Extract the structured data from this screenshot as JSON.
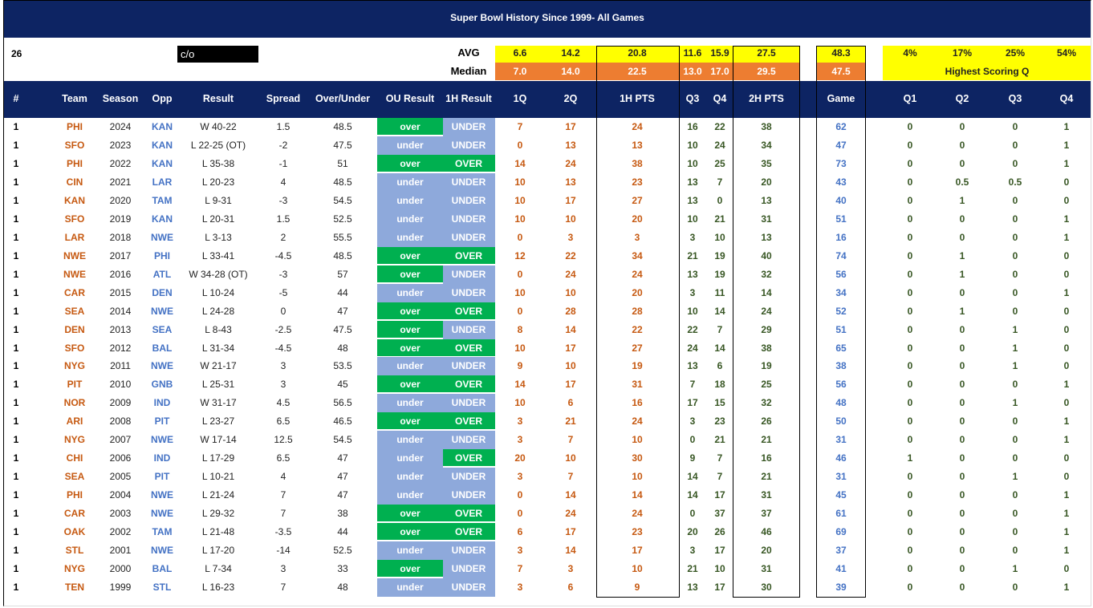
{
  "title": "Super Bowl History Since 1999- All Games",
  "count": "26",
  "filter": "c/o",
  "avg": {
    "label": "AVG",
    "values": [
      "6.6",
      "14.2",
      "20.8",
      "11.6",
      "15.9",
      "27.5",
      "48.3"
    ]
  },
  "median": {
    "label": "Median",
    "values": [
      "7.0",
      "14.0",
      "22.5",
      "13.0",
      "17.0",
      "29.5",
      "47.5"
    ]
  },
  "quarter_pct": [
    "4%",
    "17%",
    "25%",
    "54%"
  ],
  "highest_label": "Highest Scoring Q",
  "table": {
    "headers": [
      "#",
      "Team",
      "Season",
      "Opp",
      "Result",
      "Spread",
      "Over/Under",
      "OU Result",
      "1H Result",
      "1Q",
      "2Q",
      "1H PTS",
      "Q3",
      "Q4",
      "2H PTS",
      "Game",
      "Q1",
      "Q2",
      "Q3",
      "Q4"
    ],
    "rows": [
      [
        "1",
        "PHI",
        "2024",
        "KAN",
        "W 40-22",
        "1.5",
        "48.5",
        "over",
        "UNDER",
        "7",
        "17",
        "24",
        "16",
        "22",
        "38",
        "62",
        "0",
        "0",
        "0",
        "1"
      ],
      [
        "1",
        "SFO",
        "2023",
        "KAN",
        "L 22-25 (OT)",
        "-2",
        "47.5",
        "under",
        "UNDER",
        "0",
        "13",
        "13",
        "10",
        "24",
        "34",
        "47",
        "0",
        "0",
        "0",
        "1"
      ],
      [
        "1",
        "PHI",
        "2022",
        "KAN",
        "L 35-38",
        "-1",
        "51",
        "over",
        "OVER",
        "14",
        "24",
        "38",
        "10",
        "25",
        "35",
        "73",
        "0",
        "0",
        "0",
        "1"
      ],
      [
        "1",
        "CIN",
        "2021",
        "LAR",
        "L 20-23",
        "4",
        "48.5",
        "under",
        "UNDER",
        "10",
        "13",
        "23",
        "13",
        "7",
        "20",
        "43",
        "0",
        "0.5",
        "0.5",
        "0"
      ],
      [
        "1",
        "KAN",
        "2020",
        "TAM",
        "L 9-31",
        "-3",
        "54.5",
        "under",
        "UNDER",
        "10",
        "17",
        "27",
        "13",
        "0",
        "13",
        "40",
        "0",
        "1",
        "0",
        "0"
      ],
      [
        "1",
        "SFO",
        "2019",
        "KAN",
        "L 20-31",
        "1.5",
        "52.5",
        "under",
        "UNDER",
        "10",
        "10",
        "20",
        "10",
        "21",
        "31",
        "51",
        "0",
        "0",
        "0",
        "1"
      ],
      [
        "1",
        "LAR",
        "2018",
        "NWE",
        "L 3-13",
        "2",
        "55.5",
        "under",
        "UNDER",
        "0",
        "3",
        "3",
        "3",
        "10",
        "13",
        "16",
        "0",
        "0",
        "0",
        "1"
      ],
      [
        "1",
        "NWE",
        "2017",
        "PHI",
        "L 33-41",
        "-4.5",
        "48.5",
        "over",
        "OVER",
        "12",
        "22",
        "34",
        "21",
        "19",
        "40",
        "74",
        "0",
        "1",
        "0",
        "0"
      ],
      [
        "1",
        "NWE",
        "2016",
        "ATL",
        "W 34-28 (OT)",
        "-3",
        "57",
        "over",
        "UNDER",
        "0",
        "24",
        "24",
        "13",
        "19",
        "32",
        "56",
        "0",
        "1",
        "0",
        "0"
      ],
      [
        "1",
        "CAR",
        "2015",
        "DEN",
        "L 10-24",
        "-5",
        "44",
        "under",
        "UNDER",
        "10",
        "10",
        "20",
        "3",
        "11",
        "14",
        "34",
        "0",
        "0",
        "0",
        "1"
      ],
      [
        "1",
        "SEA",
        "2014",
        "NWE",
        "L 24-28",
        "0",
        "47",
        "over",
        "OVER",
        "0",
        "28",
        "28",
        "10",
        "14",
        "24",
        "52",
        "0",
        "1",
        "0",
        "0"
      ],
      [
        "1",
        "DEN",
        "2013",
        "SEA",
        "L 8-43",
        "-2.5",
        "47.5",
        "over",
        "UNDER",
        "8",
        "14",
        "22",
        "22",
        "7",
        "29",
        "51",
        "0",
        "0",
        "1",
        "0"
      ],
      [
        "1",
        "SFO",
        "2012",
        "BAL",
        "L 31-34",
        "-4.5",
        "48",
        "over",
        "OVER",
        "10",
        "17",
        "27",
        "24",
        "14",
        "38",
        "65",
        "0",
        "0",
        "1",
        "0"
      ],
      [
        "1",
        "NYG",
        "2011",
        "NWE",
        "W 21-17",
        "3",
        "53.5",
        "under",
        "UNDER",
        "9",
        "10",
        "19",
        "13",
        "6",
        "19",
        "38",
        "0",
        "0",
        "1",
        "0"
      ],
      [
        "1",
        "PIT",
        "2010",
        "GNB",
        "L 25-31",
        "3",
        "45",
        "over",
        "OVER",
        "14",
        "17",
        "31",
        "7",
        "18",
        "25",
        "56",
        "0",
        "0",
        "0",
        "1"
      ],
      [
        "1",
        "NOR",
        "2009",
        "IND",
        "W 31-17",
        "4.5",
        "56.5",
        "under",
        "UNDER",
        "10",
        "6",
        "16",
        "17",
        "15",
        "32",
        "48",
        "0",
        "0",
        "1",
        "0"
      ],
      [
        "1",
        "ARI",
        "2008",
        "PIT",
        "L 23-27",
        "6.5",
        "46.5",
        "over",
        "OVER",
        "3",
        "21",
        "24",
        "3",
        "23",
        "26",
        "50",
        "0",
        "0",
        "0",
        "1"
      ],
      [
        "1",
        "NYG",
        "2007",
        "NWE",
        "W 17-14",
        "12.5",
        "54.5",
        "under",
        "UNDER",
        "3",
        "7",
        "10",
        "0",
        "21",
        "21",
        "31",
        "0",
        "0",
        "0",
        "1"
      ],
      [
        "1",
        "CHI",
        "2006",
        "IND",
        "L 17-29",
        "6.5",
        "47",
        "under",
        "OVER",
        "20",
        "10",
        "30",
        "9",
        "7",
        "16",
        "46",
        "1",
        "0",
        "0",
        "0"
      ],
      [
        "1",
        "SEA",
        "2005",
        "PIT",
        "L 10-21",
        "4",
        "47",
        "under",
        "UNDER",
        "3",
        "7",
        "10",
        "14",
        "7",
        "21",
        "31",
        "0",
        "0",
        "1",
        "0"
      ],
      [
        "1",
        "PHI",
        "2004",
        "NWE",
        "L 21-24",
        "7",
        "47",
        "under",
        "UNDER",
        "0",
        "14",
        "14",
        "14",
        "17",
        "31",
        "45",
        "0",
        "0",
        "0",
        "1"
      ],
      [
        "1",
        "CAR",
        "2003",
        "NWE",
        "L 29-32",
        "7",
        "38",
        "over",
        "OVER",
        "0",
        "24",
        "24",
        "0",
        "37",
        "37",
        "61",
        "0",
        "0",
        "0",
        "1"
      ],
      [
        "1",
        "OAK",
        "2002",
        "TAM",
        "L 21-48",
        "-3.5",
        "44",
        "over",
        "OVER",
        "6",
        "17",
        "23",
        "20",
        "26",
        "46",
        "69",
        "0",
        "0",
        "0",
        "1"
      ],
      [
        "1",
        "STL",
        "2001",
        "NWE",
        "L 17-20",
        "-14",
        "52.5",
        "under",
        "UNDER",
        "3",
        "14",
        "17",
        "3",
        "17",
        "20",
        "37",
        "0",
        "0",
        "0",
        "1"
      ],
      [
        "1",
        "NYG",
        "2000",
        "BAL",
        "L 7-34",
        "3",
        "33",
        "over",
        "UNDER",
        "7",
        "3",
        "10",
        "21",
        "10",
        "31",
        "41",
        "0",
        "0",
        "1",
        "0"
      ],
      [
        "1",
        "TEN",
        "1999",
        "STL",
        "L 16-23",
        "7",
        "48",
        "under",
        "UNDER",
        "3",
        "6",
        "9",
        "13",
        "17",
        "30",
        "39",
        "0",
        "0",
        "0",
        "1"
      ]
    ]
  }
}
